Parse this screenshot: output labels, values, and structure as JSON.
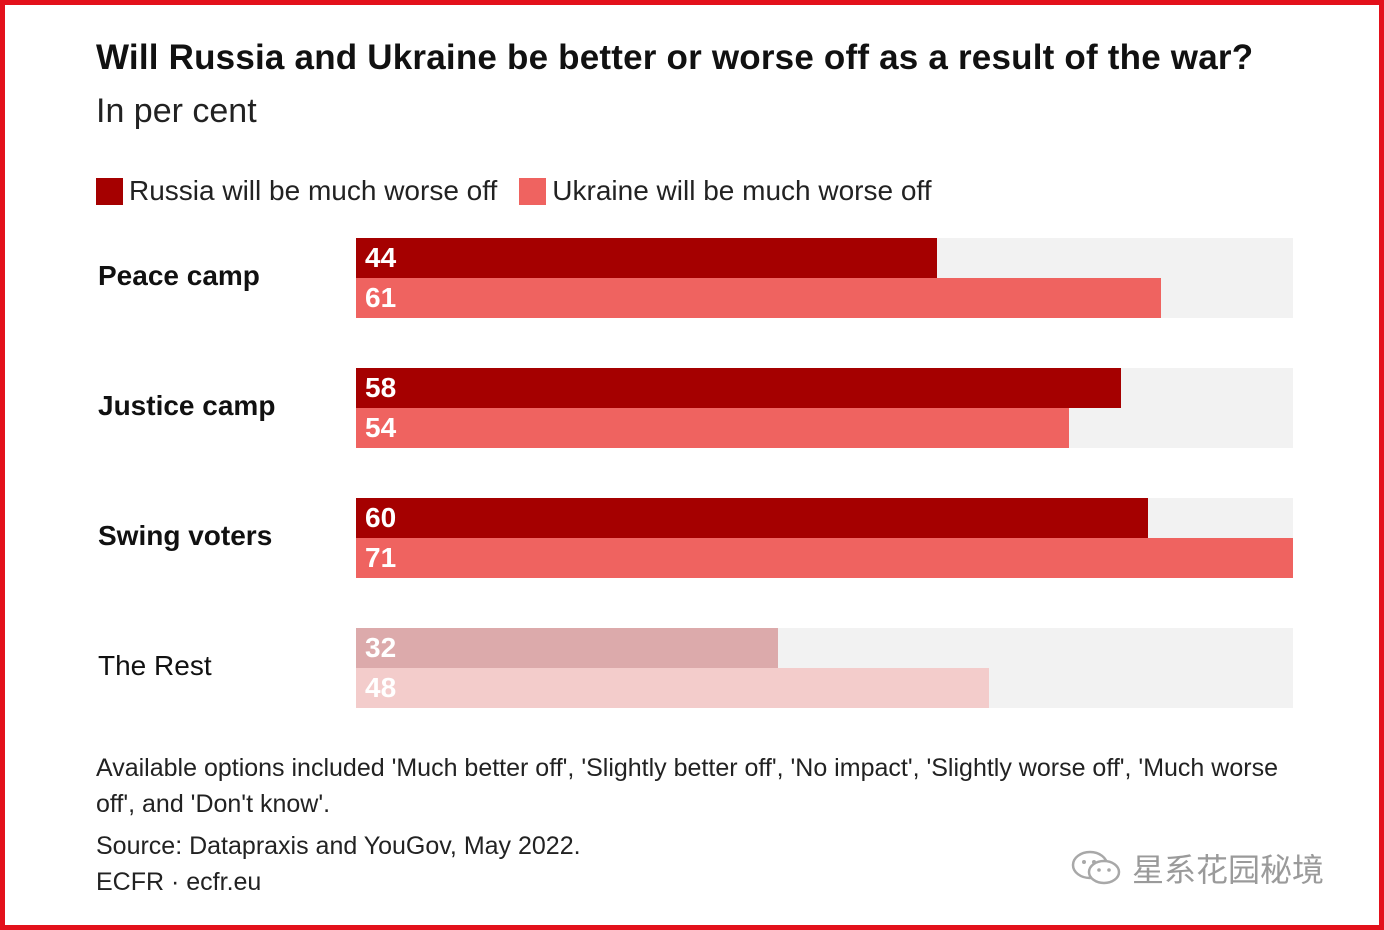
{
  "header": {
    "title": "Will Russia and Ukraine be better or worse off as a result of the war?",
    "subtitle": "In per cent"
  },
  "legend": [
    {
      "label": "Russia will be much worse off",
      "color": "#a50000"
    },
    {
      "label": "Ukraine will be much worse off",
      "color": "#ef6360"
    }
  ],
  "chart_data": {
    "type": "bar",
    "orientation": "horizontal",
    "title": "Will Russia and Ukraine be better or worse off as a result of the war?",
    "subtitle": "In per cent",
    "categories": [
      "Peace camp",
      "Justice camp",
      "Swing voters",
      "The Rest"
    ],
    "series": [
      {
        "name": "Russia will be much worse off",
        "values": [
          44,
          58,
          60,
          32
        ]
      },
      {
        "name": "Ukraine will be much worse off",
        "values": [
          61,
          54,
          71,
          48
        ]
      }
    ],
    "xlim": [
      0,
      71
    ],
    "xlabel": "",
    "ylabel": "",
    "grid": false,
    "legend_position": "top-left",
    "emphasized_categories": [
      "Peace camp",
      "Justice camp",
      "Swing voters"
    ],
    "muted_colors": [
      "#dcaaab",
      "#f3cccb"
    ]
  },
  "notes": {
    "options": "Available options included 'Much better off', 'Slightly better off', 'No impact', 'Slightly worse off', 'Much worse off', and 'Don't know'.",
    "source": "Source: Datapraxis and YouGov, May 2022.",
    "credit": "ECFR · ecfr.eu"
  },
  "watermark": {
    "text": "星系花园秘境",
    "icon": "wechat-icon"
  }
}
